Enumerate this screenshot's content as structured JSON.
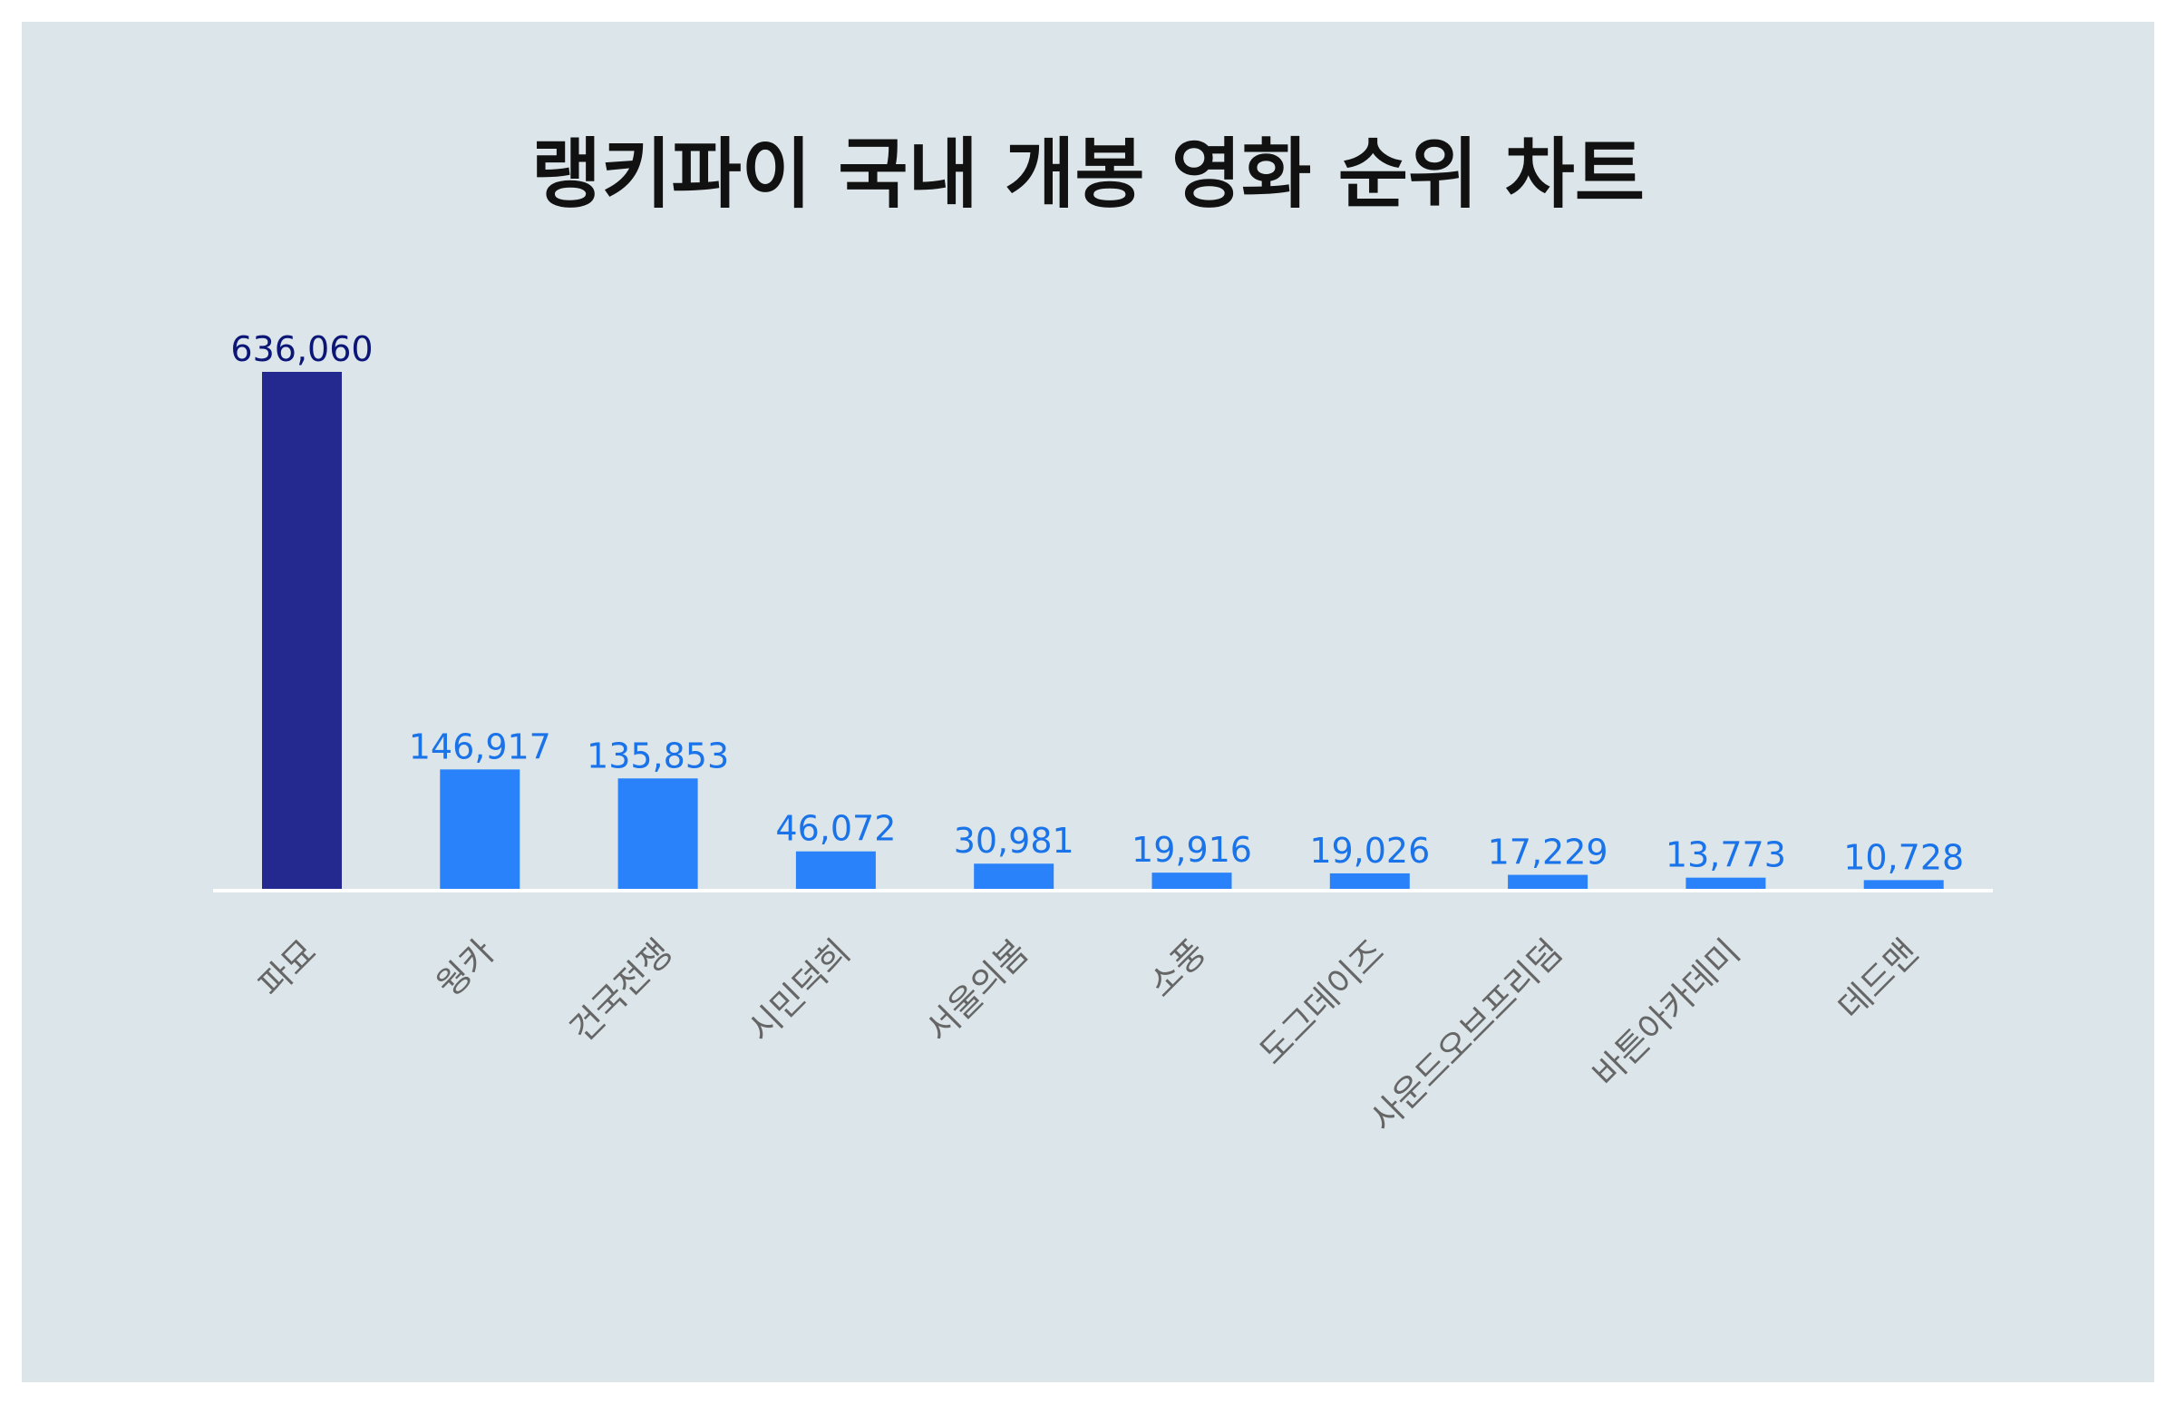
{
  "chart_data": {
    "type": "bar",
    "title": "랭키파이 국내 개봉 영화 순위 차트",
    "categories": [
      "파묘",
      "웡카",
      "건국전쟁",
      "시민덕희",
      "서울의봄",
      "소풍",
      "도그데이즈",
      "사운드오브프리덤",
      "바튼아카데미",
      "데드맨"
    ],
    "values": [
      636060,
      146917,
      135853,
      46072,
      30981,
      19916,
      19026,
      17229,
      13773,
      10728
    ],
    "value_labels": [
      "636,060",
      "146,917",
      "135,853",
      "46,072",
      "30,981",
      "19,916",
      "19,026",
      "17,229",
      "13,773",
      "10,728"
    ],
    "xlabel": "",
    "ylabel": "",
    "ylim": [
      0,
      636060
    ],
    "grid": false,
    "legend": "none",
    "colors": {
      "top_bar": "#23298f",
      "top_label": "#0b1677",
      "bar": "#2a82fa",
      "label": "#1a73e8",
      "baseline": "#ffffff",
      "background": "#dce6ea"
    }
  }
}
